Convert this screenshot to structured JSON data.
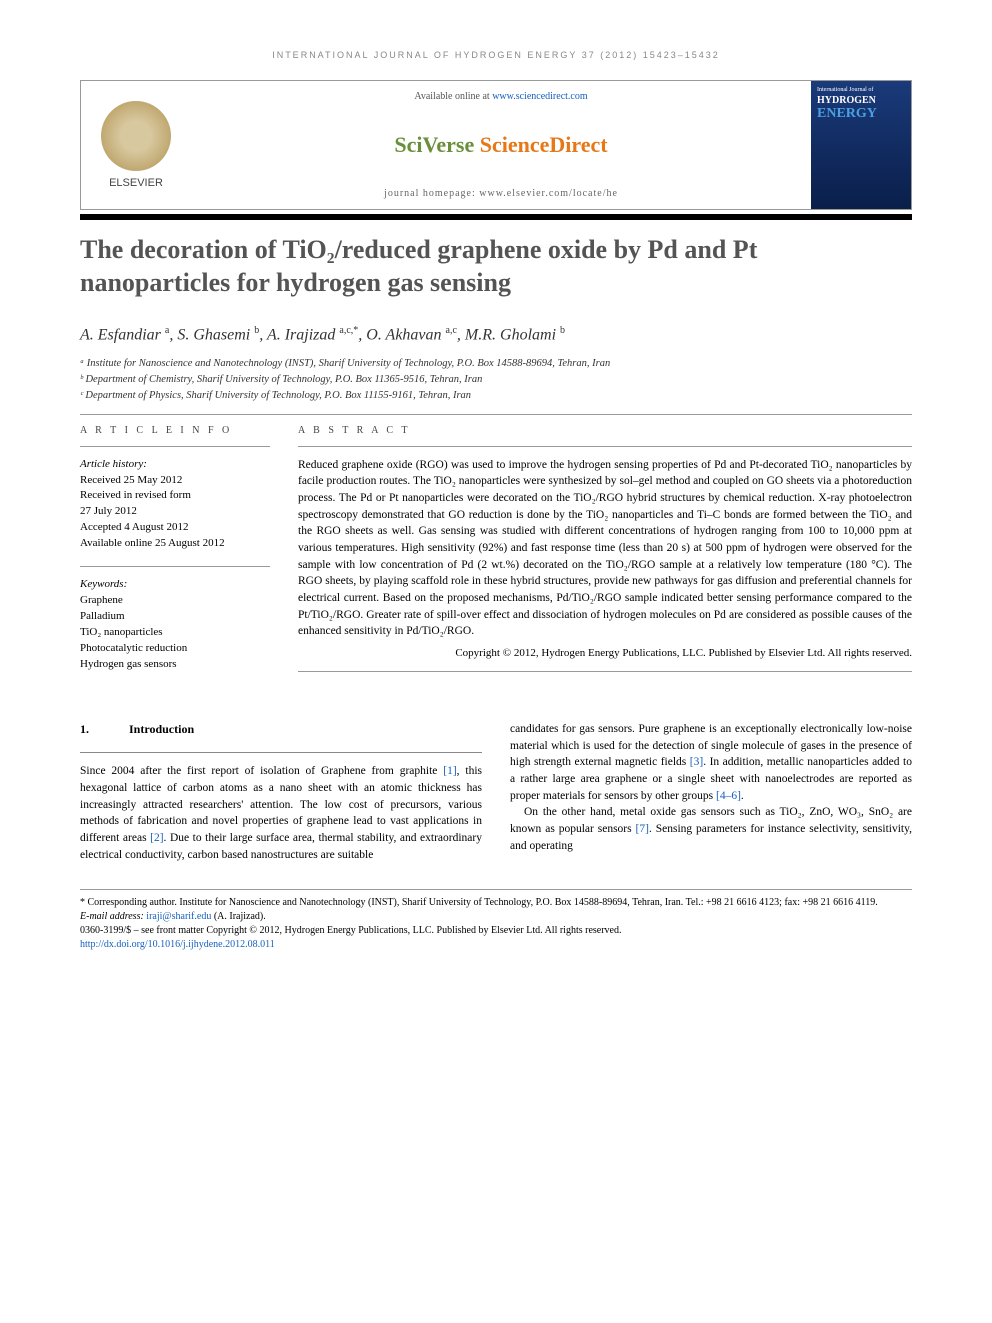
{
  "running_head": "INTERNATIONAL JOURNAL OF HYDROGEN ENERGY 37 (2012) 15423–15432",
  "masthead": {
    "elsevier": "ELSEVIER",
    "available": "Available online at ",
    "available_link": "www.sciencedirect.com",
    "brand_a": "SciVerse ",
    "brand_b": "ScienceDirect",
    "homepage": "journal homepage: www.elsevier.com/locate/he",
    "cover_small": "International Journal of",
    "cover_title": "HYDROGEN",
    "cover_energy": "ENERGY"
  },
  "title": "The decoration of TiO₂/reduced graphene oxide by Pd and Pt nanoparticles for hydrogen gas sensing",
  "authors_html": "A. Esfandiar <sup>a</sup>, S. Ghasemi <sup>b</sup>, A. Irajizad <sup>a,c,*</sup>, O. Akhavan <sup>a,c</sup>, M.R. Gholami <sup>b</sup>",
  "affiliations": [
    "ᵃ Institute for Nanoscience and Nanotechnology (INST), Sharif University of Technology, P.O. Box 14588-89694, Tehran, Iran",
    "ᵇ Department of Chemistry, Sharif University of Technology, P.O. Box 11365-9516, Tehran, Iran",
    "ᶜ Department of Physics, Sharif University of Technology, P.O. Box 11155-9161, Tehran, Iran"
  ],
  "labels": {
    "info": "A R T I C L E  I N F O",
    "abstract": "A B S T R A C T"
  },
  "history": {
    "head": "Article history:",
    "lines": [
      "Received 25 May 2012",
      "Received in revised form",
      "27 July 2012",
      "Accepted 4 August 2012",
      "Available online 25 August 2012"
    ]
  },
  "keywords": {
    "head": "Keywords:",
    "items": [
      "Graphene",
      "Palladium",
      "TiO₂ nanoparticles",
      "Photocatalytic reduction",
      "Hydrogen gas sensors"
    ]
  },
  "abstract": "Reduced graphene oxide (RGO) was used to improve the hydrogen sensing properties of Pd and Pt-decorated TiO₂ nanoparticles by facile production routes. The TiO₂ nanoparticles were synthesized by sol–gel method and coupled on GO sheets via a photoreduction process. The Pd or Pt nanoparticles were decorated on the TiO₂/RGO hybrid structures by chemical reduction. X-ray photoelectron spectroscopy demonstrated that GO reduction is done by the TiO₂ nanoparticles and Ti–C bonds are formed between the TiO₂ and the RGO sheets as well. Gas sensing was studied with different concentrations of hydrogen ranging from 100 to 10,000 ppm at various temperatures. High sensitivity (92%) and fast response time (less than 20 s) at 500 ppm of hydrogen were observed for the sample with low concentration of Pd (2 wt.%) decorated on the TiO₂/RGO sample at a relatively low temperature (180 °C). The RGO sheets, by playing scaffold role in these hybrid structures, provide new pathways for gas diffusion and preferential channels for electrical current. Based on the proposed mechanisms, Pd/TiO₂/RGO sample indicated better sensing performance compared to the Pt/TiO₂/RGO. Greater rate of spill-over effect and dissociation of hydrogen molecules on Pd are considered as possible causes of the enhanced sensitivity in Pd/TiO₂/RGO.",
  "copyright": "Copyright © 2012, Hydrogen Energy Publications, LLC. Published by Elsevier Ltd. All rights reserved.",
  "section": {
    "num": "1.",
    "title": "Introduction"
  },
  "body_left": "Since 2004 after the first report of isolation of Graphene from graphite [1], this hexagonal lattice of carbon atoms as a nano sheet with an atomic thickness has increasingly attracted researchers' attention. The low cost of precursors, various methods of fabrication and novel properties of graphene lead to vast applications in different areas [2]. Due to their large surface area, thermal stability, and extraordinary electrical conductivity, carbon based nanostructures are suitable",
  "body_right_p1": "candidates for gas sensors. Pure graphene is an exceptionally electronically low-noise material which is used for the detection of single molecule of gases in the presence of high strength external magnetic fields [3]. In addition, metallic nanoparticles added to a rather large area graphene or a single sheet with nanoelectrodes are reported as proper materials for sensors by other groups [4–6].",
  "body_right_p2": "On the other hand, metal oxide gas sensors such as TiO₂, ZnO, WO₃, SnO₂ are known as popular sensors [7]. Sensing parameters for instance selectivity, sensitivity, and operating",
  "footnotes": {
    "corr": "* Corresponding author. Institute for Nanoscience and Nanotechnology (INST), Sharif University of Technology, P.O. Box 14588-89694, Tehran, Iran. Tel.: +98 21 6616 4123; fax: +98 21 6616 4119.",
    "email_label": "E-mail address: ",
    "email": "iraji@sharif.edu",
    "email_tail": " (A. Irajizad).",
    "issn": "0360-3199/$ – see front matter Copyright © 2012, Hydrogen Energy Publications, LLC. Published by Elsevier Ltd. All rights reserved.",
    "doi": "http://dx.doi.org/10.1016/j.ijhydene.2012.08.011"
  }
}
